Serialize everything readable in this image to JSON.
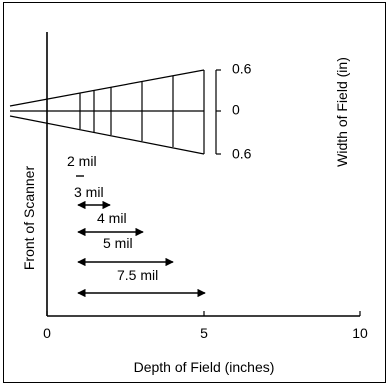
{
  "axis": {
    "x_label": "Depth of Field (inches)",
    "x_ticks": [
      "0",
      "5",
      "10"
    ],
    "y_left_label": "Front of Scanner",
    "y_right_label": "Width of Field (in)",
    "y_right_ticks": [
      "0.6",
      "0",
      "0.6"
    ]
  },
  "ranges": [
    {
      "label": "2 mil"
    },
    {
      "label": "3 mil"
    },
    {
      "label": "4 mil"
    },
    {
      "label": "5 mil"
    },
    {
      "label": "7.5 mil"
    }
  ]
}
